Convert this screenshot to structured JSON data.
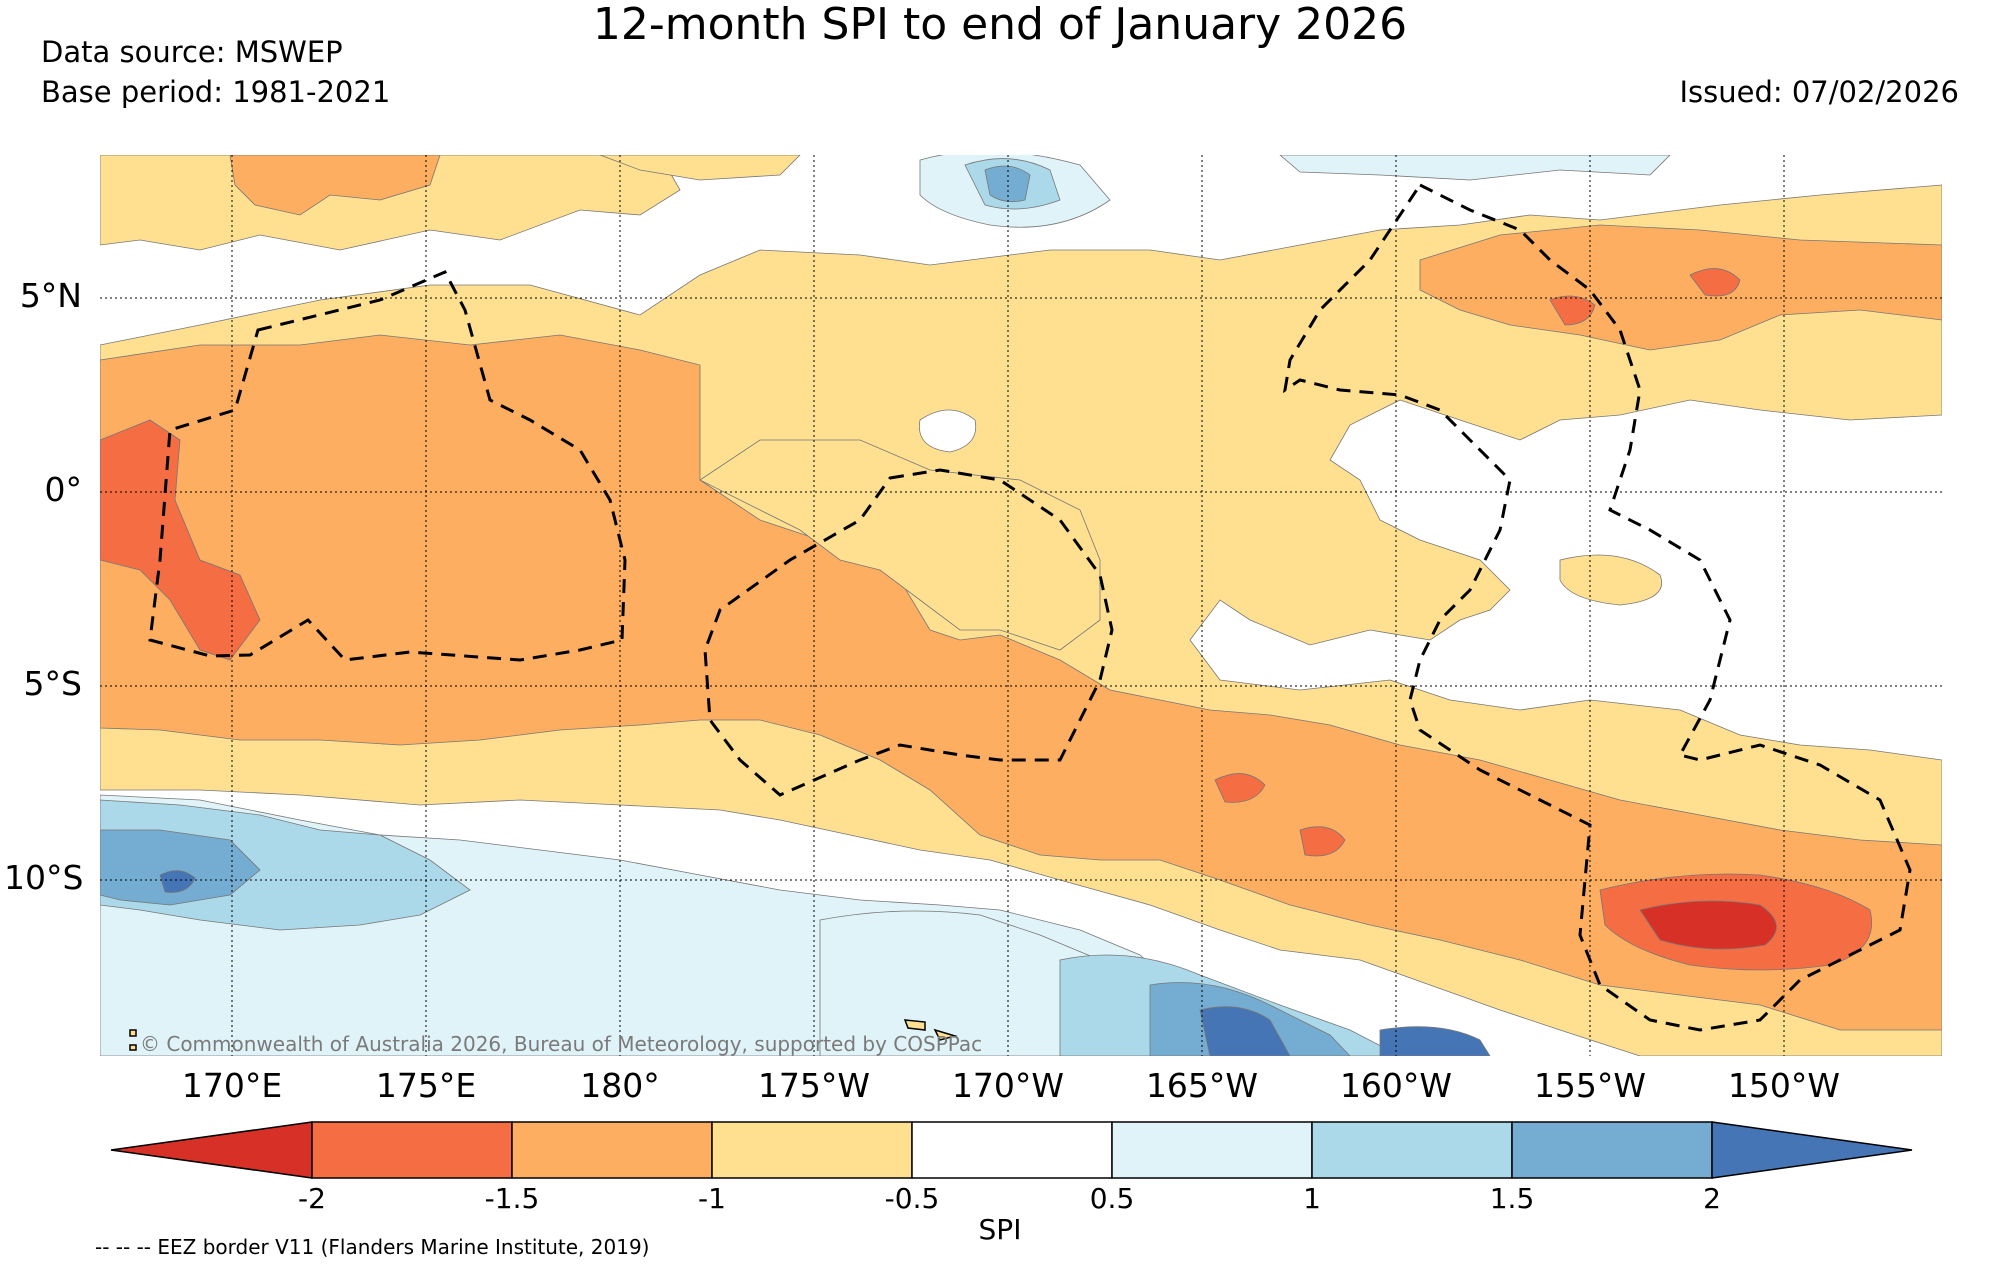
{
  "title": "12-month SPI to end of January 2026",
  "data_source": "Data source: MSWEP",
  "base_period": "Base period: 1981-2021",
  "issued": "Issued: 07/02/2026",
  "lat_labels": [
    "5°N",
    "0°",
    "5°S",
    "10°S"
  ],
  "lon_labels": [
    "170°E",
    "175°E",
    "180°",
    "175°W",
    "170°W",
    "165°W",
    "160°W",
    "155°W",
    "150°W"
  ],
  "copyright": "© Commonwealth of Australia 2026, Bureau of Meteorology, supported by COSPPac",
  "colorbar": {
    "label": "SPI",
    "ticks": [
      "-2",
      "-1.5",
      "-1",
      "-0.5",
      "0.5",
      "1",
      "1.5",
      "2"
    ],
    "colors": [
      "#d73027",
      "#f46d43",
      "#fdae61",
      "#fee090",
      "#ffffff",
      "#e0f3f8",
      "#abd9e9",
      "#74add1",
      "#4575b4"
    ]
  },
  "eez_note": "-- -- -- EEZ border V11 (Flanders Marine Institute, 2019)"
}
